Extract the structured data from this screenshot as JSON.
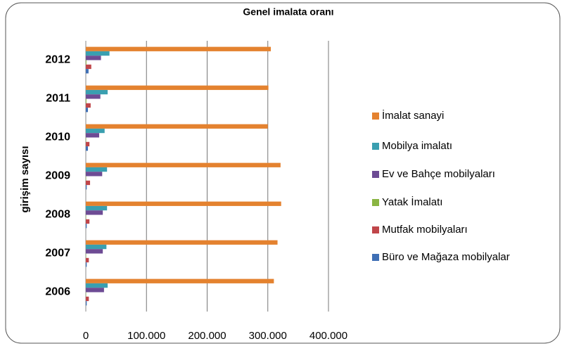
{
  "chart_data": {
    "type": "bar",
    "orientation": "horizontal",
    "title": "Genel imalata oranı",
    "y_label": "girişim sayısı",
    "categories": [
      "2006",
      "2007",
      "2008",
      "2009",
      "2010",
      "2011",
      "2012"
    ],
    "series": [
      {
        "name": "İmalat sanayi",
        "color": "#e4822f",
        "values": [
          310000,
          316000,
          322000,
          321000,
          300000,
          301000,
          305000
        ]
      },
      {
        "name": "Mobilya imalatı",
        "color": "#3a9fb0",
        "values": [
          36000,
          34000,
          35000,
          35000,
          31000,
          36000,
          39000
        ]
      },
      {
        "name": "Ev ve Bahçe mobilyaları",
        "color": "#6d4b94",
        "values": [
          30000,
          28000,
          28000,
          27000,
          22000,
          24000,
          25000
        ]
      },
      {
        "name": "Yatak İmalatı",
        "color": "#8ab543",
        "values": [
          500,
          500,
          500,
          500,
          500,
          1000,
          1000
        ]
      },
      {
        "name": "Mutfak mobilyaları",
        "color": "#c0464a",
        "values": [
          5000,
          5000,
          6000,
          7000,
          6000,
          8000,
          9000
        ]
      },
      {
        "name": "Büro ve Mağaza mobilyalar",
        "color": "#3f6fb5",
        "values": [
          1500,
          1500,
          1500,
          1500,
          3500,
          3500,
          4500
        ]
      }
    ],
    "xlim": [
      0,
      400000
    ],
    "xticks": [
      0,
      {
        "value": 100000,
        "label": "100.000"
      },
      {
        "value": 200000,
        "label": "200.000"
      },
      {
        "value": 300000,
        "label": "300.000"
      },
      {
        "value": 400000,
        "label": "400.000"
      }
    ],
    "grid": true,
    "legend": "right"
  }
}
